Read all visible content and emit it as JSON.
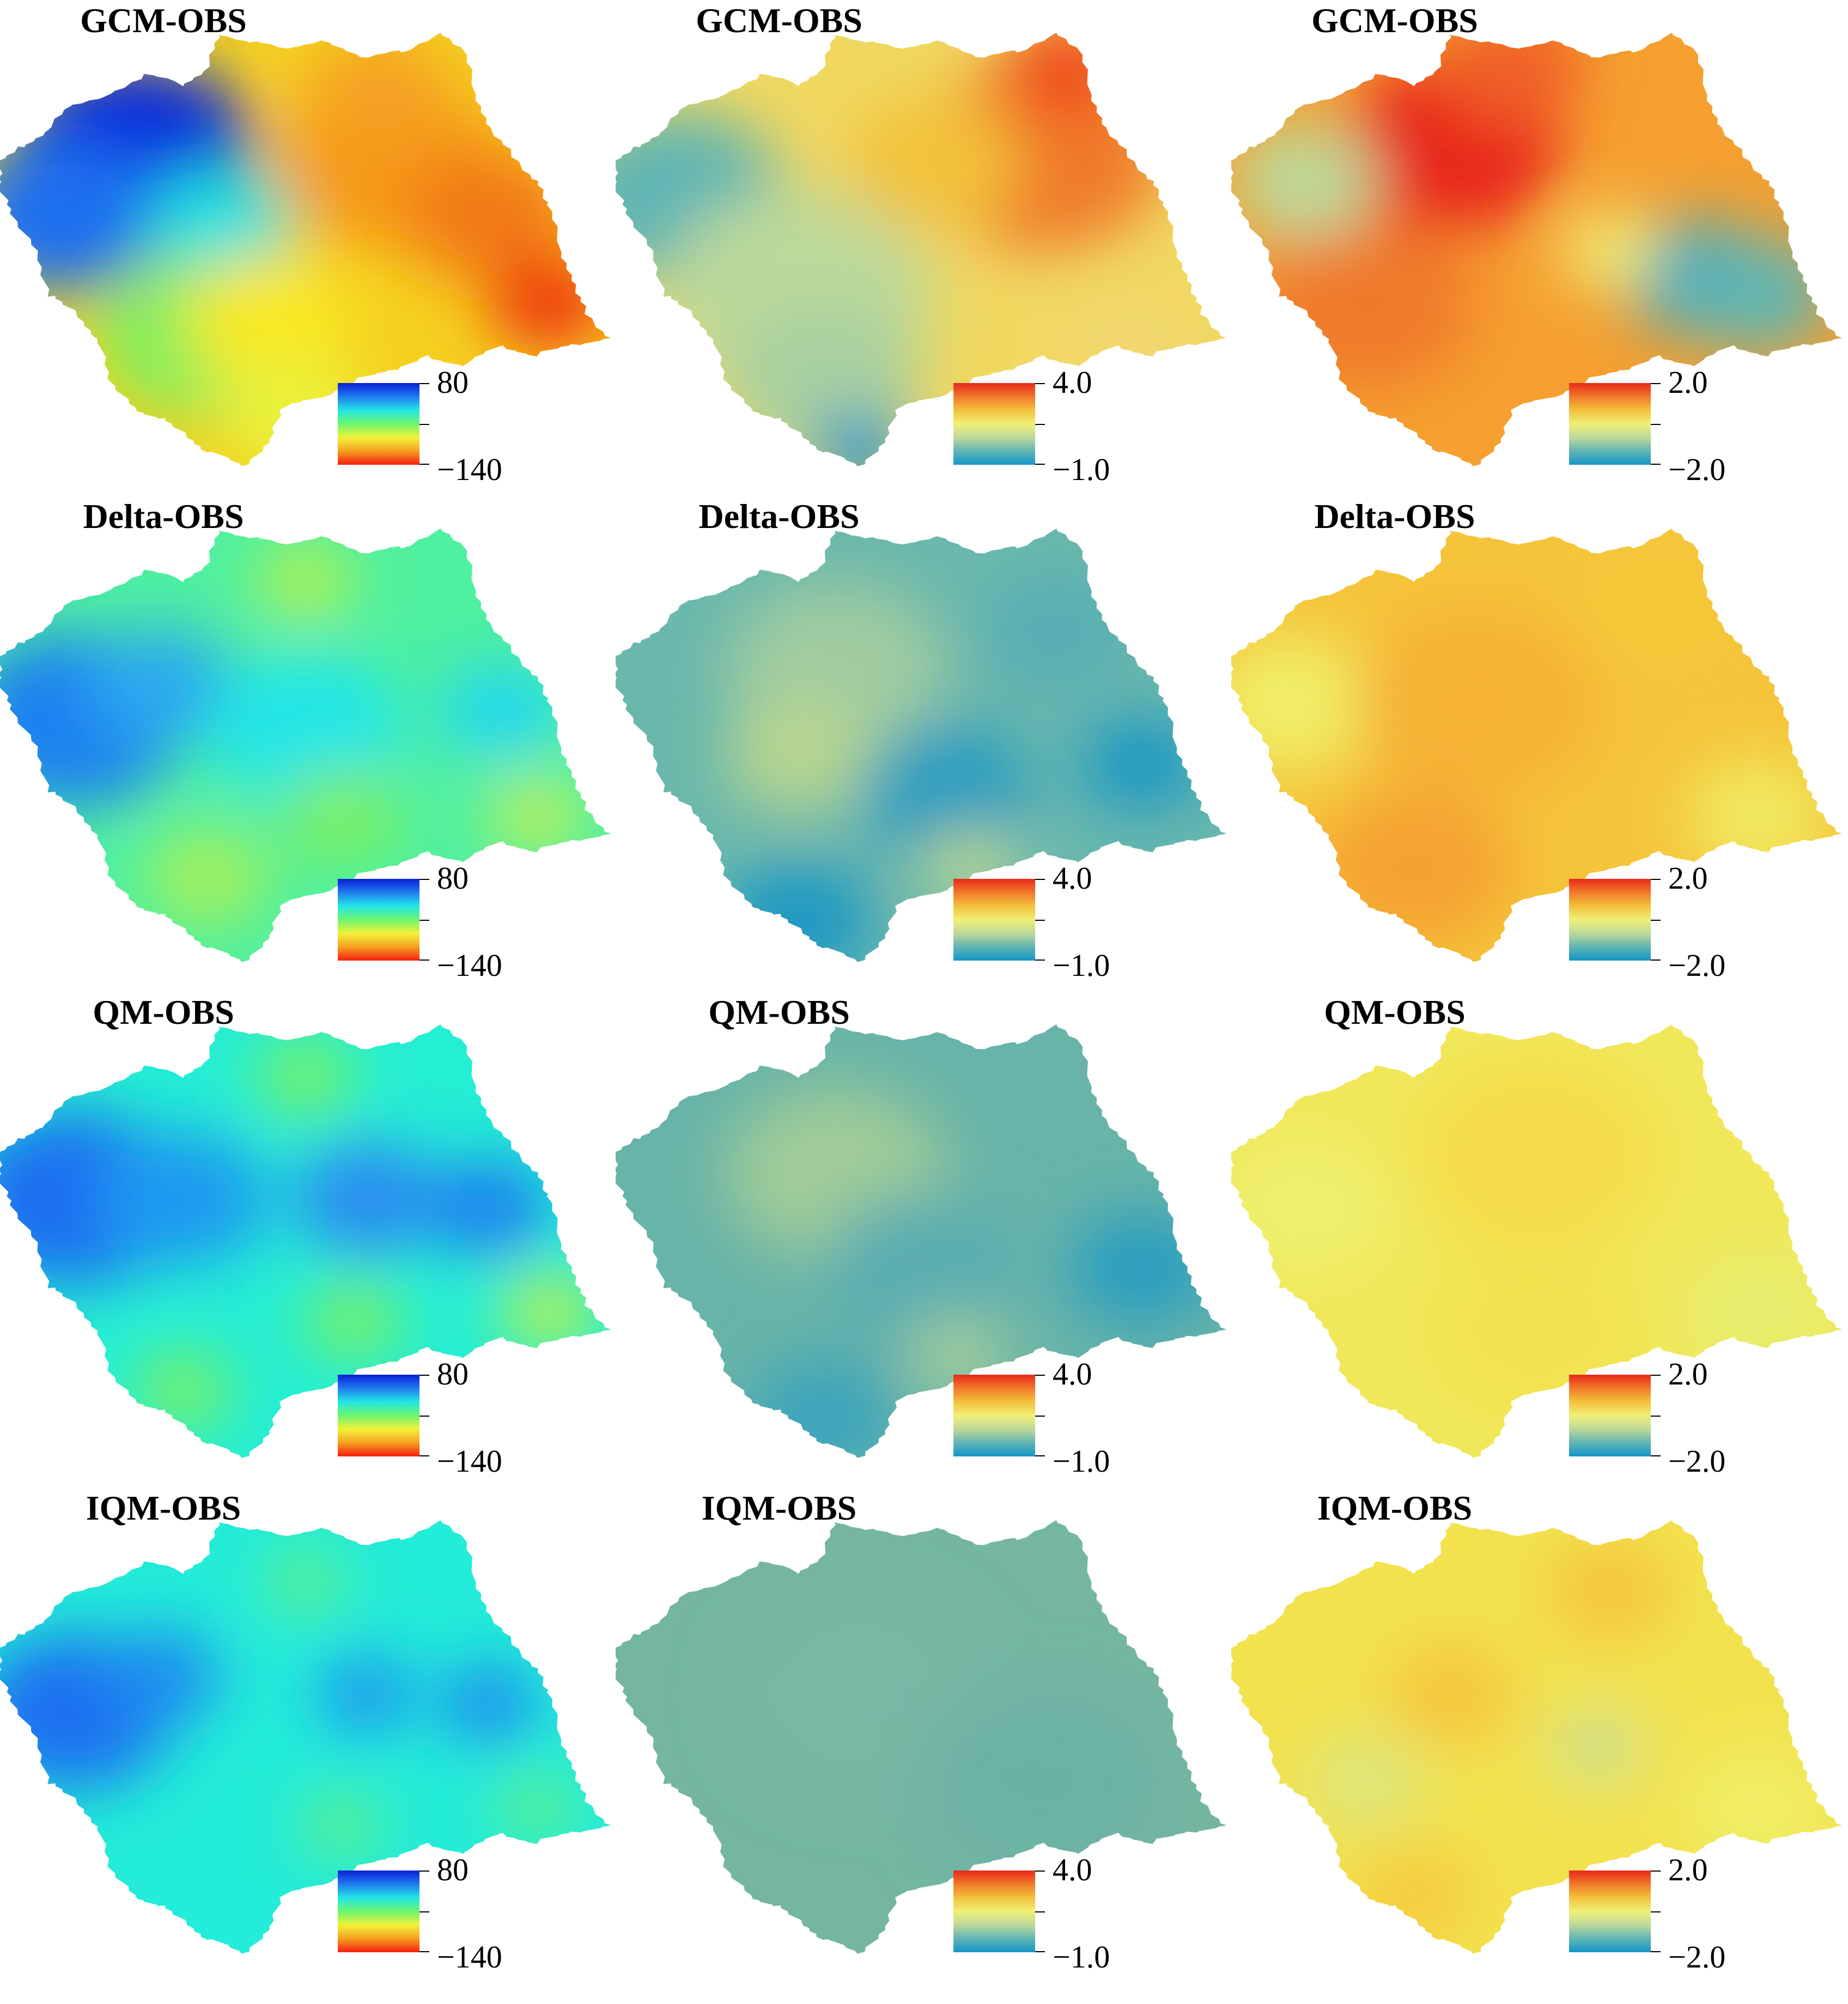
{
  "figure": {
    "rows": [
      "GCM-OBS",
      "Delta-OBS",
      "QM-OBS",
      "IQM-OBS"
    ],
    "columns": [
      {
        "colormap": "precip",
        "legend": {
          "max_label": "80",
          "min_label": "−140"
        },
        "gradient": [
          "#0a1fd6",
          "#1e7bf0",
          "#23e6e6",
          "#6df56e",
          "#f2f23a",
          "#f5a020",
          "#f51e10"
        ]
      },
      {
        "colormap": "temp",
        "legend": {
          "max_label": "4.0",
          "min_label": "−1.0"
        },
        "gradient": [
          "#e8281c",
          "#f07a2a",
          "#f2c23a",
          "#f0ef78",
          "#bcd99a",
          "#5fb5b4",
          "#1496c8"
        ]
      },
      {
        "colormap": "temp2",
        "legend": {
          "max_label": "2.0",
          "min_label": "−2.0"
        },
        "gradient": [
          "#e8281c",
          "#f07a2a",
          "#f2c23a",
          "#f0ef78",
          "#bcd99a",
          "#5fb5b4",
          "#1496c8"
        ]
      }
    ],
    "panels": [
      {
        "title": "GCM-OBS",
        "fields": [
          "gcm-precip",
          "gcm-tmax",
          "gcm-tmin"
        ]
      },
      {
        "title": "Delta-OBS",
        "fields": [
          "delta-precip",
          "delta-tmax",
          "delta-tmin"
        ]
      },
      {
        "title": "QM-OBS",
        "fields": [
          "qm-precip",
          "qm-tmax",
          "qm-tmin"
        ]
      },
      {
        "title": "IQM-OBS",
        "fields": [
          "iqm-precip",
          "iqm-tmax",
          "iqm-tmin"
        ]
      }
    ],
    "fields": {
      "gcm-precip": {
        "base": "#f5d020",
        "blobs": [
          [
            "#0b2fdc",
            0.22,
            0.28,
            0.2
          ],
          [
            "#1e6ff0",
            0.1,
            0.42,
            0.16
          ],
          [
            "#23e0e0",
            0.36,
            0.44,
            0.12
          ],
          [
            "#7df060",
            0.32,
            0.7,
            0.16
          ],
          [
            "#f8e820",
            0.44,
            0.66,
            0.14
          ],
          [
            "#f59a18",
            0.64,
            0.3,
            0.18
          ],
          [
            "#f27a12",
            0.8,
            0.42,
            0.14
          ],
          [
            "#ef3a10",
            0.9,
            0.62,
            0.1
          ],
          [
            "#f5a020",
            0.62,
            0.14,
            0.12
          ],
          [
            "#e9f23a",
            0.48,
            0.88,
            0.12
          ]
        ]
      },
      "gcm-tmax": {
        "base": "#f0d860",
        "blobs": [
          [
            "#5fb5b4",
            0.1,
            0.38,
            0.18
          ],
          [
            "#bcd99a",
            0.3,
            0.6,
            0.22
          ],
          [
            "#a8d0a0",
            0.34,
            0.8,
            0.16
          ],
          [
            "#1496c8",
            0.4,
            0.96,
            0.08
          ],
          [
            "#f07a2a",
            0.7,
            0.28,
            0.2
          ],
          [
            "#f04a1e",
            0.74,
            0.08,
            0.1
          ],
          [
            "#f2c23a",
            0.52,
            0.3,
            0.14
          ],
          [
            "#f2d870",
            0.84,
            0.74,
            0.12
          ]
        ]
      },
      "gcm-tmin": {
        "base": "#f5a030",
        "blobs": [
          [
            "#e8281c",
            0.36,
            0.26,
            0.18
          ],
          [
            "#f06028",
            0.46,
            0.08,
            0.12
          ],
          [
            "#f07a2a",
            0.22,
            0.62,
            0.18
          ],
          [
            "#bcd99a",
            0.12,
            0.34,
            0.12
          ],
          [
            "#3fa8c0",
            0.76,
            0.56,
            0.12
          ],
          [
            "#5fb5b4",
            0.86,
            0.6,
            0.12
          ],
          [
            "#f0ef78",
            0.62,
            0.5,
            0.08
          ]
        ]
      },
      "delta-precip": {
        "base": "#4ff0a0",
        "blobs": [
          [
            "#1e80f0",
            0.12,
            0.44,
            0.18
          ],
          [
            "#2aa8f0",
            0.26,
            0.36,
            0.12
          ],
          [
            "#23e6e6",
            0.5,
            0.46,
            0.16
          ],
          [
            "#23d8f0",
            0.82,
            0.42,
            0.1
          ],
          [
            "#7df060",
            0.56,
            0.66,
            0.1
          ],
          [
            "#c0f05a",
            0.88,
            0.66,
            0.08
          ],
          [
            "#a6f05a",
            0.34,
            0.8,
            0.1
          ],
          [
            "#b6f050",
            0.5,
            0.12,
            0.08
          ]
        ]
      },
      "delta-tmax": {
        "base": "#6ab8ac",
        "blobs": [
          [
            "#a0ccA0",
            0.36,
            0.32,
            0.18
          ],
          [
            "#b8d68f",
            0.3,
            0.52,
            0.12
          ],
          [
            "#2a9ec0",
            0.54,
            0.6,
            0.14
          ],
          [
            "#1e98c4",
            0.86,
            0.54,
            0.1
          ],
          [
            "#1e98c4",
            0.3,
            0.9,
            0.12
          ],
          [
            "#b8d68f",
            0.58,
            0.78,
            0.08
          ],
          [
            "#56aeb4",
            0.72,
            0.24,
            0.12
          ]
        ]
      },
      "delta-tmin": {
        "base": "#f5c43a",
        "blobs": [
          [
            "#f0ef68",
            0.1,
            0.4,
            0.14
          ],
          [
            "#f5b234",
            0.4,
            0.4,
            0.2
          ],
          [
            "#f5a232",
            0.3,
            0.78,
            0.16
          ],
          [
            "#f0ea60",
            0.86,
            0.66,
            0.12
          ],
          [
            "#f5c838",
            0.7,
            0.18,
            0.14
          ]
        ]
      },
      "qm-precip": {
        "base": "#24eed4",
        "blobs": [
          [
            "#1e6ef0",
            0.12,
            0.4,
            0.18
          ],
          [
            "#1e9af0",
            0.3,
            0.4,
            0.14
          ],
          [
            "#2a8ef0",
            0.6,
            0.4,
            0.12
          ],
          [
            "#1e80f0",
            0.8,
            0.42,
            0.1
          ],
          [
            "#7df060",
            0.58,
            0.68,
            0.08
          ],
          [
            "#bdf050",
            0.9,
            0.66,
            0.08
          ],
          [
            "#7df060",
            0.3,
            0.84,
            0.08
          ],
          [
            "#7df060",
            0.5,
            0.12,
            0.08
          ]
        ]
      },
      "qm-tmax": {
        "base": "#68b4a8",
        "blobs": [
          [
            "#a0cc98",
            0.36,
            0.34,
            0.18
          ],
          [
            "#5aaeb0",
            0.5,
            0.56,
            0.16
          ],
          [
            "#2a9ec0",
            0.86,
            0.56,
            0.12
          ],
          [
            "#3aa4bc",
            0.34,
            0.9,
            0.12
          ],
          [
            "#a6cf98",
            0.56,
            0.76,
            0.08
          ]
        ]
      },
      "qm-tmin": {
        "base": "#f0e85a",
        "blobs": [
          [
            "#f5dc48",
            0.5,
            0.3,
            0.2
          ],
          [
            "#eef070",
            0.12,
            0.42,
            0.14
          ],
          [
            "#f2e250",
            0.5,
            0.7,
            0.18
          ],
          [
            "#e6ee70",
            0.86,
            0.66,
            0.12
          ]
        ]
      },
      "iqm-precip": {
        "base": "#23ecd8",
        "blobs": [
          [
            "#1e70f0",
            0.12,
            0.44,
            0.16
          ],
          [
            "#1e8af0",
            0.26,
            0.36,
            0.1
          ],
          [
            "#1e94f0",
            0.6,
            0.4,
            0.08
          ],
          [
            "#1e8af0",
            0.8,
            0.42,
            0.08
          ],
          [
            "#6ef078",
            0.56,
            0.7,
            0.06
          ],
          [
            "#6ef078",
            0.88,
            0.66,
            0.06
          ],
          [
            "#6ef078",
            0.5,
            0.14,
            0.06
          ]
        ]
      },
      "iqm-tmax": {
        "base": "#74b6a2",
        "blobs": [
          [
            "#78b8a4",
            0.4,
            0.4,
            0.2
          ],
          [
            "#6cb2a4",
            0.7,
            0.6,
            0.2
          ]
        ]
      },
      "iqm-tmin": {
        "base": "#f2e24e",
        "blobs": [
          [
            "#f5c43a",
            0.36,
            0.4,
            0.1
          ],
          [
            "#f5c43a",
            0.62,
            0.16,
            0.1
          ],
          [
            "#cfe190",
            0.6,
            0.52,
            0.08
          ],
          [
            "#dde67c",
            0.22,
            0.6,
            0.1
          ],
          [
            "#f5cc3e",
            0.3,
            0.86,
            0.1
          ],
          [
            "#f0ef68",
            0.86,
            0.66,
            0.12
          ]
        ]
      }
    }
  }
}
